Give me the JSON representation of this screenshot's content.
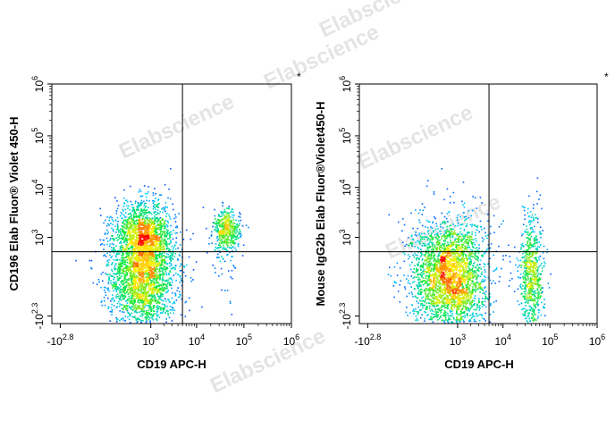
{
  "watermark": "Elabscience",
  "colors": {
    "density_low": "#0000ff",
    "density_mid": "#00ff00",
    "density_high": "#ff0000",
    "gate_line": "#000000"
  },
  "chart_data": [
    {
      "type": "scatter",
      "subtype": "flow-cytometry-density-dot-plot",
      "corner_mark": "*",
      "xlabel": "CD19 APC-H",
      "ylabel": "CD196 Elab Fluor® Violet 450-H",
      "x_scale": "biexponential",
      "y_scale": "biexponential",
      "x_ticks": [
        {
          "base": "-10",
          "exp": "2.8",
          "value": -631
        },
        {
          "base": "10",
          "exp": "3",
          "value": 1000
        },
        {
          "base": "10",
          "exp": "4",
          "value": 10000
        },
        {
          "base": "10",
          "exp": "5",
          "value": 100000
        },
        {
          "base": "10",
          "exp": "6",
          "value": 1000000
        }
      ],
      "y_ticks": [
        {
          "base": "-10",
          "exp": "2.3",
          "value": -200
        },
        {
          "base": "10",
          "exp": "3",
          "value": 1000
        },
        {
          "base": "10",
          "exp": "4",
          "value": 10000
        },
        {
          "base": "10",
          "exp": "5",
          "value": 100000
        },
        {
          "base": "10",
          "exp": "6",
          "value": 1000000
        }
      ],
      "xlim": [
        -1000,
        1000000
      ],
      "ylim": [
        -320,
        1000000
      ],
      "quadrant_gate": {
        "x": 5000,
        "y": 480
      },
      "populations": [
        {
          "x": 630,
          "y": 110,
          "sx": 0.35,
          "sy": 0.6,
          "n": 2600
        },
        {
          "x": 630,
          "y": 1100,
          "sx": 0.3,
          "sy": 0.32,
          "n": 1100
        },
        {
          "x": 42000,
          "y": 1400,
          "sx": 0.14,
          "sy": 0.2,
          "n": 420
        },
        {
          "x": 42000,
          "y": 400,
          "sx": 0.2,
          "sy": 0.5,
          "n": 60
        }
      ]
    },
    {
      "type": "scatter",
      "subtype": "flow-cytometry-density-dot-plot",
      "corner_mark": "*",
      "xlabel": "CD19 APC-H",
      "ylabel": "Mouse IgG2b Elab Fluor®Violet450-H",
      "x_scale": "biexponential",
      "y_scale": "biexponential",
      "x_ticks": [
        {
          "base": "-10",
          "exp": "2.8",
          "value": -631
        },
        {
          "base": "10",
          "exp": "3",
          "value": 1000
        },
        {
          "base": "10",
          "exp": "4",
          "value": 10000
        },
        {
          "base": "10",
          "exp": "5",
          "value": 100000
        },
        {
          "base": "10",
          "exp": "6",
          "value": 1000000
        }
      ],
      "y_ticks": [
        {
          "base": "-10",
          "exp": "2.3",
          "value": -200
        },
        {
          "base": "10",
          "exp": "3",
          "value": 1000
        },
        {
          "base": "10",
          "exp": "4",
          "value": 10000
        },
        {
          "base": "10",
          "exp": "5",
          "value": 100000
        },
        {
          "base": "10",
          "exp": "6",
          "value": 1000000
        }
      ],
      "xlim": [
        -1000,
        1000000
      ],
      "ylim": [
        -320,
        1000000
      ],
      "quadrant_gate": {
        "x": 5000,
        "y": 480
      },
      "populations": [
        {
          "x": 630,
          "y": 100,
          "sx": 0.4,
          "sy": 0.55,
          "n": 2800
        },
        {
          "x": 40000,
          "y": 100,
          "sx": 0.13,
          "sy": 0.6,
          "n": 700
        }
      ]
    }
  ]
}
